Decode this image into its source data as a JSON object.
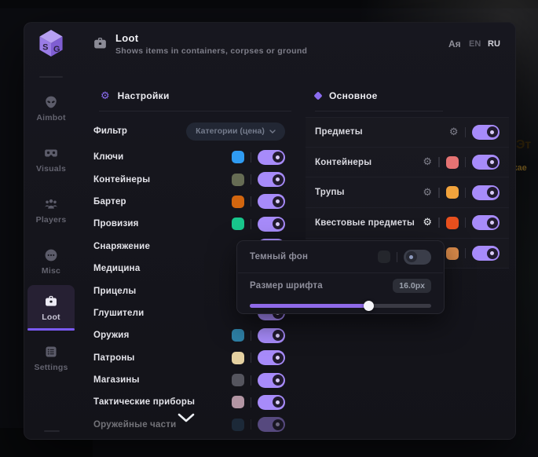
{
  "colors": {
    "accent": "#8b6cf0",
    "toggle_on": "#a78bfa"
  },
  "background_badge": {
    "line1": "Эт",
    "line2": "кае",
    "color": "#db8125"
  },
  "header": {
    "icon": "briefcase-icon",
    "title": "Loot",
    "subtitle": "Shows items in containers, corpses or ground",
    "language_icon": "Aя",
    "languages": [
      {
        "label": "EN",
        "active": false
      },
      {
        "label": "RU",
        "active": true
      }
    ]
  },
  "sidebar": {
    "items": [
      {
        "id": "aimbot",
        "label": "Aimbot",
        "icon": "alien-icon",
        "active": false
      },
      {
        "id": "visuals",
        "label": "Visuals",
        "icon": "goggles-icon",
        "active": false
      },
      {
        "id": "players",
        "label": "Players",
        "icon": "players-icon",
        "active": false
      },
      {
        "id": "misc",
        "label": "Misc",
        "icon": "dots-icon",
        "active": false
      },
      {
        "id": "loot",
        "label": "Loot",
        "icon": "briefcase-icon",
        "active": true
      },
      {
        "id": "settings",
        "label": "Settings",
        "icon": "list-icon",
        "active": false
      }
    ]
  },
  "filters": {
    "title": "Настройки",
    "filter_label": "Фильтр",
    "filter_value": "Категории (цена)",
    "items": [
      {
        "label": "Ключи",
        "color": "#2f9bf2",
        "enabled": true
      },
      {
        "label": "Контейнеры",
        "color": "#666c54",
        "enabled": true
      },
      {
        "label": "Бартер",
        "color": "#d2660f",
        "enabled": true
      },
      {
        "label": "Провизия",
        "color": "#19c78c",
        "enabled": true
      },
      {
        "label": "Снаряжение",
        "color": null,
        "enabled": true
      },
      {
        "label": "Медицина",
        "color": null,
        "enabled": true
      },
      {
        "label": "Прицелы",
        "color": null,
        "enabled": true
      },
      {
        "label": "Глушители",
        "color": null,
        "enabled": true
      },
      {
        "label": "Оружия",
        "color": "#2e80a6",
        "enabled": true
      },
      {
        "label": "Патроны",
        "color": "#e5d1a1",
        "enabled": true
      },
      {
        "label": "Магазины",
        "color": "#55555e",
        "enabled": true
      },
      {
        "label": "Тактические приборы",
        "color": "#b295a3",
        "enabled": true
      },
      {
        "label": "Оружейные части",
        "color": "#27455f",
        "enabled": true
      }
    ]
  },
  "main": {
    "title": "Основное",
    "rows": [
      {
        "label": "Предметы",
        "color": null,
        "enabled": true,
        "gear_active": false
      },
      {
        "label": "Контейнеры",
        "color": "#e57373",
        "enabled": true,
        "gear_active": false
      },
      {
        "label": "Трупы",
        "color": "#f2a33c",
        "enabled": true,
        "gear_active": false
      },
      {
        "label": "Квестовые предметы",
        "color": "#e8501e",
        "enabled": true,
        "gear_active": true
      },
      {
        "label": "",
        "color": "#d98a4a",
        "enabled": true,
        "gear_active": false
      }
    ]
  },
  "popup": {
    "dark_bg": {
      "label": "Темный фон",
      "swatch_color": "#24262c",
      "enabled": false
    },
    "font_size": {
      "label": "Размер шрифта",
      "value": "16.0px",
      "slider_percent": 65
    }
  }
}
